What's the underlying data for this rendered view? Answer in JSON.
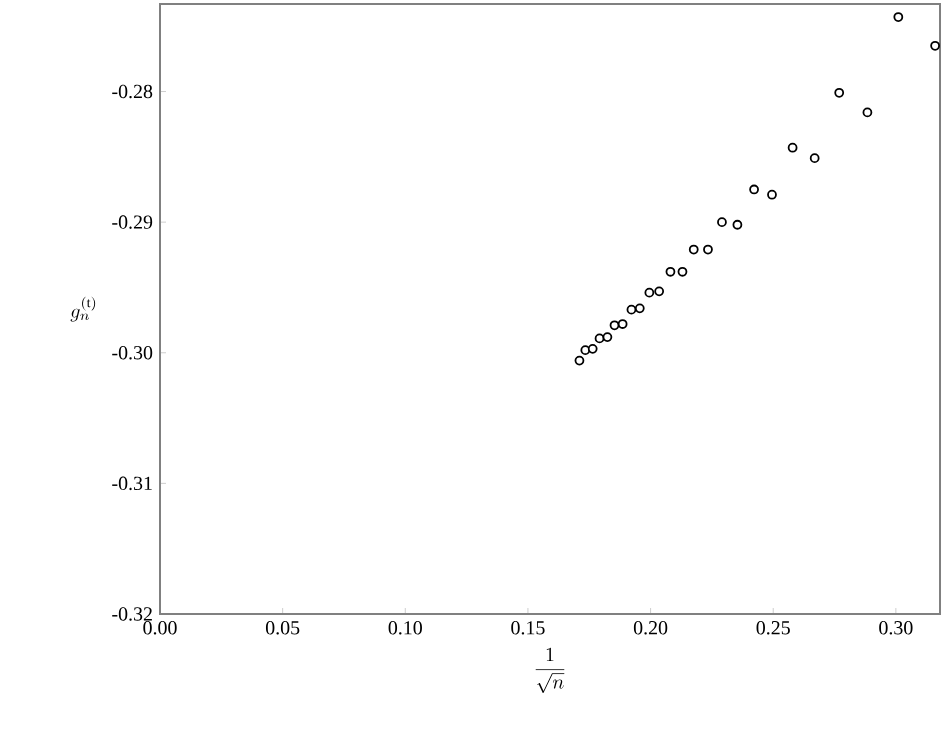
{
  "chart_data": {
    "type": "scatter",
    "xlabel": "\\frac{1}{\\sqrt{n}}",
    "ylabel": "g_n^{(\\mathrm{t})}",
    "xlim": [
      0,
      0.318
    ],
    "ylim": [
      -0.32,
      -0.2733
    ],
    "xticks": [
      {
        "value": 0,
        "label": "0.00"
      },
      {
        "value": 0.05,
        "label": "0.05"
      },
      {
        "value": 0.1,
        "label": "0.10"
      },
      {
        "value": 0.15,
        "label": "0.15"
      },
      {
        "value": 0.2,
        "label": "0.20"
      },
      {
        "value": 0.25,
        "label": "0.25"
      },
      {
        "value": 0.3,
        "label": "0.30"
      }
    ],
    "yticks": [
      {
        "value": -0.32,
        "label": "-0.32"
      },
      {
        "value": -0.31,
        "label": "-0.31"
      },
      {
        "value": -0.3,
        "label": "-0.30"
      },
      {
        "value": -0.29,
        "label": "-0.29"
      },
      {
        "value": -0.28,
        "label": "-0.28"
      }
    ],
    "marker": "circle",
    "series": [
      {
        "color": "#000000",
        "x": [
          0.171,
          0.1734,
          0.1764,
          0.1792,
          0.1824,
          0.1853,
          0.1886,
          0.1922,
          0.1956,
          0.1995,
          0.2035,
          0.2081,
          0.213,
          0.2176,
          0.2234,
          0.2291,
          0.2354,
          0.2422,
          0.2495,
          0.2579,
          0.2669,
          0.2769,
          0.2884,
          0.301,
          0.316
        ],
        "values": [
          -0.3006,
          -0.2998,
          -0.2997,
          -0.2989,
          -0.2988,
          -0.2979,
          -0.2978,
          -0.2967,
          -0.2966,
          -0.2954,
          -0.2953,
          -0.2938,
          -0.2938,
          -0.2921,
          -0.2921,
          -0.29,
          -0.2902,
          -0.2875,
          -0.2879,
          -0.2843,
          -0.2851,
          -0.2801,
          -0.2816,
          -0.2743,
          -0.2765
        ]
      }
    ]
  }
}
